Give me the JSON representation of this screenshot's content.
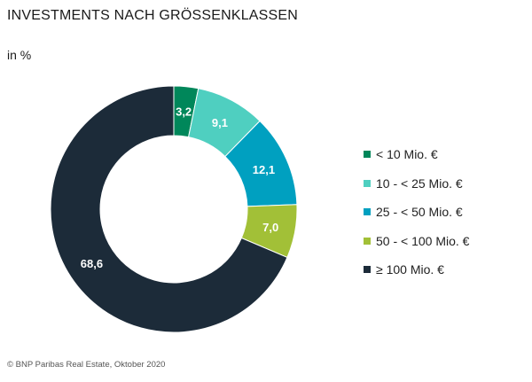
{
  "chart_data": {
    "type": "pie",
    "donut": true,
    "title": "INVESTMENTS NACH GRÖSSENKLASSEN",
    "unit": "in %",
    "categories": [
      "< 10 Mio. €",
      "10 - < 25 Mio. €",
      "25 - < 50 Mio. €",
      "50 - < 100 Mio. €",
      "≥ 100 Mio. €"
    ],
    "values": [
      3.2,
      9.1,
      12.1,
      7.0,
      68.6
    ],
    "labels": [
      "3,2",
      "9,1",
      "12,1",
      "7,0",
      "68,6"
    ],
    "colors": [
      "#00875a",
      "#4fcfc0",
      "#00a0c0",
      "#a2c037",
      "#1c2b39"
    ],
    "legend_position": "right"
  },
  "source": "© BNP Paribas Real Estate, Oktober 2020"
}
